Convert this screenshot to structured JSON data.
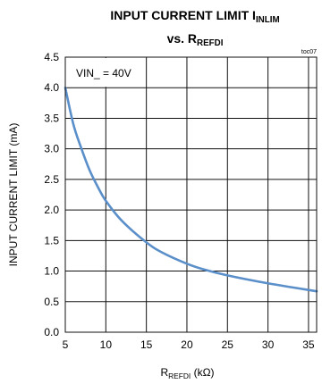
{
  "chart_data": {
    "type": "line",
    "title_line1_main": "INPUT CURRENT LIMIT I",
    "title_line1_sub": "INLIM",
    "title_line2_main": "vs. R",
    "title_line2_sub": "REFDI",
    "corner_tag": "toc07",
    "annotation": "VIN_ = 40V",
    "xlabel_main": "R",
    "xlabel_sub": "REFDI",
    "xlabel_unit": " (kΩ)",
    "ylabel": "INPUT CURRENT LIMIT (mA)",
    "xlim": [
      5,
      36
    ],
    "ylim": [
      0,
      4.5
    ],
    "xticks": [
      5,
      10,
      15,
      20,
      25,
      30,
      35
    ],
    "yticks": [
      "0.0",
      "0.5",
      "1.0",
      "1.5",
      "2.0",
      "2.5",
      "3.0",
      "3.5",
      "4.0",
      "4.5"
    ],
    "grid": true,
    "series": [
      {
        "color": "#5b8fc9",
        "x": [
          5,
          6,
          7,
          8,
          9,
          10,
          12,
          15,
          17,
          20,
          22,
          25,
          30,
          36
        ],
        "y": [
          4.0,
          3.4,
          3.0,
          2.65,
          2.38,
          2.15,
          1.82,
          1.47,
          1.3,
          1.12,
          1.03,
          0.93,
          0.8,
          0.67
        ]
      }
    ]
  }
}
